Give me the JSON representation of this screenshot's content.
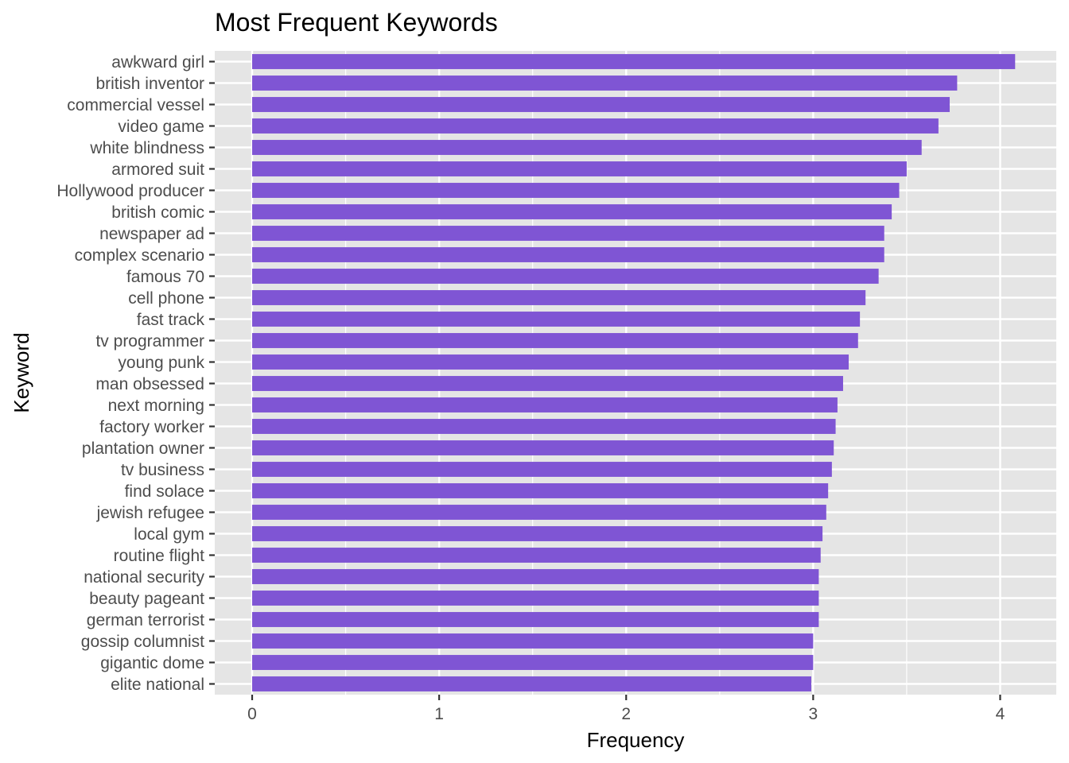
{
  "chart_data": {
    "type": "bar",
    "orientation": "horizontal",
    "title": "Most Frequent Keywords",
    "xlabel": "Frequency",
    "ylabel": "Keyword",
    "xlim": [
      -0.2,
      4.3
    ],
    "xticks": [
      "0",
      "1",
      "2",
      "3",
      "4"
    ],
    "grid": true,
    "bar_color": "#7f55d4",
    "panel_color": "#e5e5e5",
    "categories": [
      "awkward girl",
      "british inventor",
      "commercial vessel",
      "video game",
      "white blindness",
      "armored suit",
      "Hollywood producer",
      "british comic",
      "newspaper ad",
      "complex scenario",
      "famous 70",
      "cell phone",
      "fast track",
      "tv programmer",
      "young punk",
      "man obsessed",
      "next morning",
      "factory worker",
      "plantation owner",
      "tv business",
      "find solace",
      "jewish refugee",
      "local gym",
      "routine flight",
      "national security",
      "beauty pageant",
      "german terrorist",
      "gossip columnist",
      "gigantic dome",
      "elite national"
    ],
    "values": [
      4.08,
      3.77,
      3.73,
      3.67,
      3.58,
      3.5,
      3.46,
      3.42,
      3.38,
      3.38,
      3.35,
      3.28,
      3.25,
      3.24,
      3.19,
      3.16,
      3.13,
      3.12,
      3.11,
      3.1,
      3.08,
      3.07,
      3.05,
      3.04,
      3.03,
      3.03,
      3.03,
      3.0,
      3.0,
      2.99
    ]
  }
}
